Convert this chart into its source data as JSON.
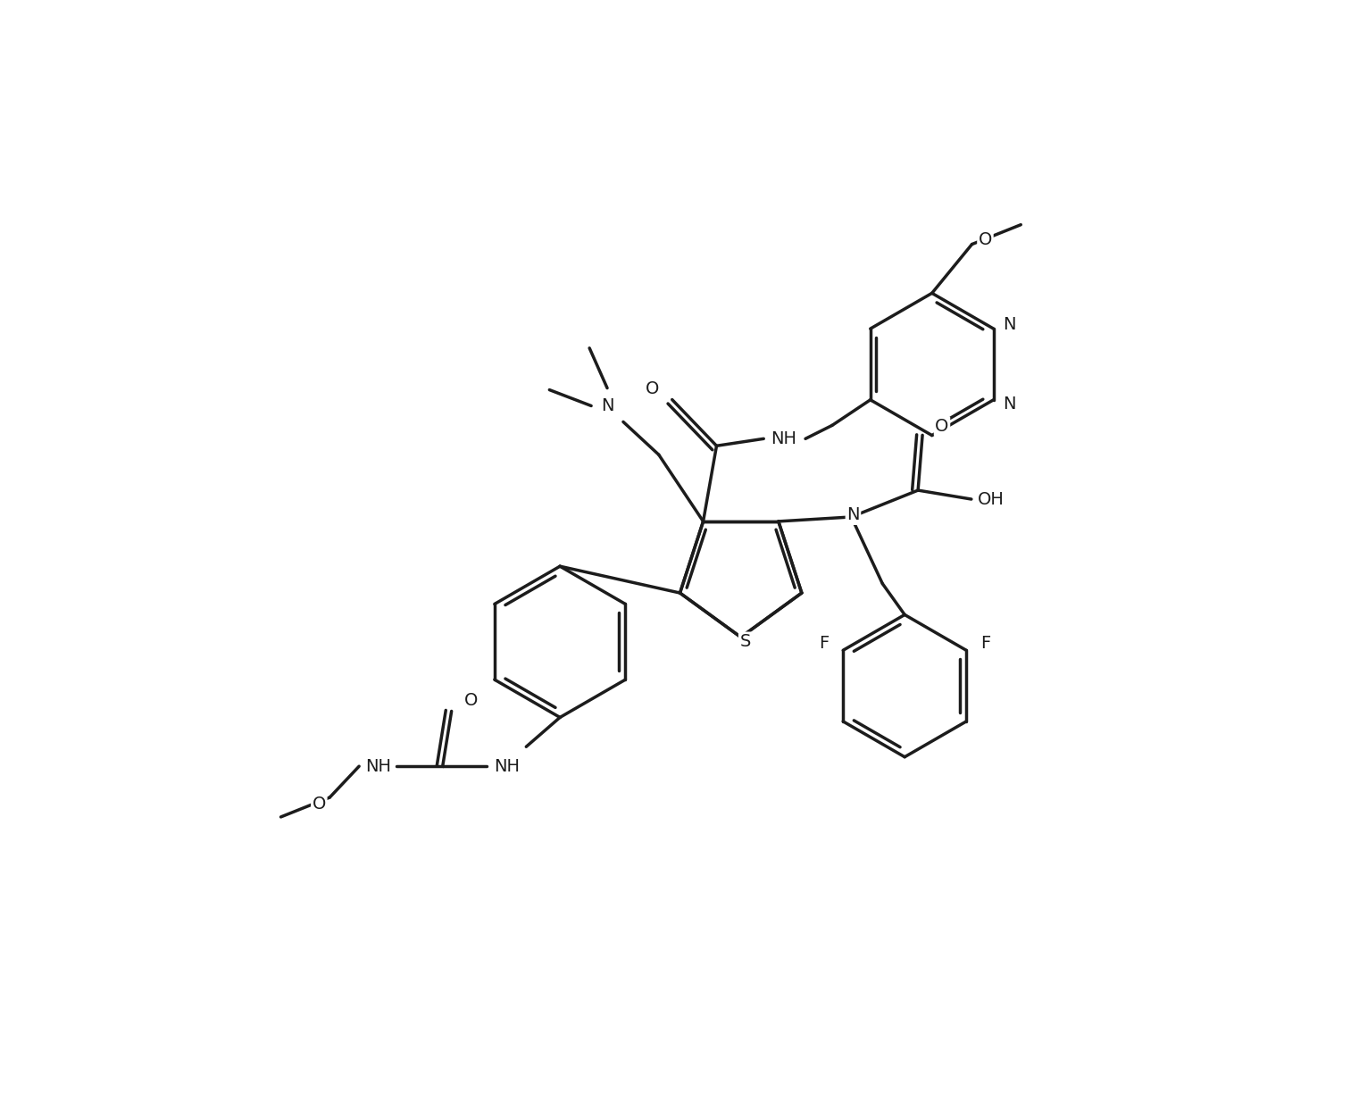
{
  "bg": "#ffffff",
  "lc": "#1c1c1c",
  "lw": 2.5,
  "fs": 14,
  "fig_w": 15.22,
  "fig_h": 12.42,
  "dpi": 100,
  "xlim": [
    0,
    15.22
  ],
  "ylim": [
    0,
    12.42
  ]
}
